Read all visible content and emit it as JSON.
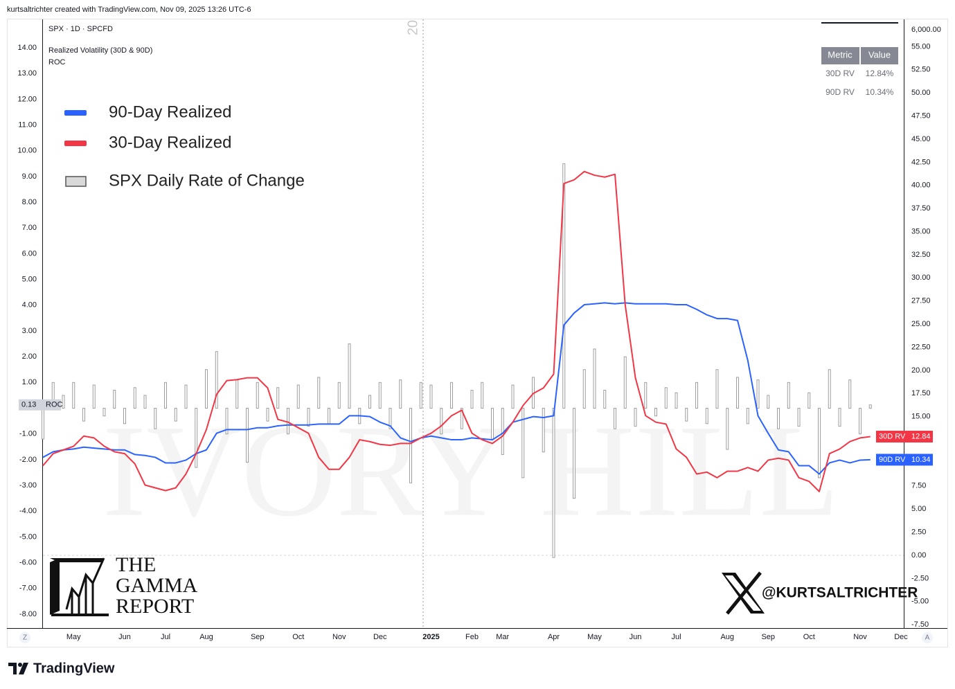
{
  "header": {
    "attribution": "kurtsaltrichter created with TradingView.com, Nov 09, 2025 13:26 UTC-6"
  },
  "chart_data": {
    "type": "line",
    "symbol": "SPX · 1D · SPCFD",
    "indicator": "Realized Volatility (30D & 90D)",
    "indicator2": "ROC",
    "year_marker": "20",
    "watermark": "IVORY HILL",
    "price_label": "6,000.00",
    "categories": [
      null,
      null,
      null,
      "May",
      null,
      null,
      null,
      null,
      "Jun",
      null,
      null,
      null,
      "Jul",
      null,
      null,
      null,
      "Aug",
      null,
      null,
      null,
      null,
      "Sep",
      null,
      null,
      null,
      "Oct",
      null,
      null,
      null,
      "Nov",
      null,
      null,
      null,
      "Dec",
      null,
      null,
      null,
      null,
      "2025",
      null,
      null,
      null,
      "Feb",
      null,
      null,
      "Mar",
      null,
      null,
      null,
      null,
      "Apr",
      null,
      null,
      null,
      "May",
      null,
      null,
      null,
      "Jun",
      null,
      null,
      null,
      "Jul",
      null,
      null,
      null,
      null,
      "Aug",
      null,
      null,
      null,
      "Sep",
      null,
      null,
      null,
      "Oct",
      null,
      null,
      null,
      null,
      "Nov",
      null,
      null,
      null,
      "Dec"
    ],
    "series": [
      {
        "name": "90-Day Realized",
        "tag": "90D RV",
        "color": "#2962ff",
        "axis": "y2",
        "values": [
          10.6,
          11.2,
          11.4,
          11.5,
          11.7,
          11.6,
          11.5,
          11.4,
          11.4,
          10.9,
          10.8,
          10.6,
          10.0,
          10.0,
          10.3,
          11.0,
          11.4,
          13.2,
          13.6,
          13.6,
          13.6,
          13.8,
          13.8,
          14.0,
          14.1,
          14.1,
          14.1,
          14.2,
          14.2,
          14.2,
          15.1,
          15.1,
          15.0,
          14.4,
          14.0,
          12.7,
          12.3,
          12.7,
          12.9,
          12.7,
          12.5,
          12.5,
          12.7,
          12.6,
          12.5,
          13.2,
          14.4,
          14.7,
          15.0,
          14.9,
          15.1,
          24.9,
          26.2,
          27.1,
          27.2,
          27.3,
          27.2,
          27.3,
          27.2,
          27.2,
          27.2,
          27.2,
          27.1,
          27.1,
          26.6,
          26.0,
          25.6,
          25.6,
          25.4,
          21.1,
          15.1,
          13.2,
          11.4,
          11.2,
          9.7,
          9.7,
          8.8,
          10.0,
          10.3,
          10.0,
          10.3,
          10.34,
          null,
          null,
          null
        ]
      },
      {
        "name": "30-Day Realized",
        "tag": "30D RV",
        "color": "#f23645",
        "axis": "y2",
        "values": [
          9.7,
          11.0,
          11.4,
          11.8,
          12.9,
          12.7,
          11.8,
          11.2,
          11.0,
          9.9,
          7.6,
          7.3,
          7.0,
          7.3,
          8.8,
          11.0,
          13.6,
          17.4,
          18.9,
          19.0,
          19.2,
          19.2,
          18.1,
          14.7,
          14.4,
          13.8,
          13.2,
          10.6,
          9.3,
          9.3,
          10.6,
          12.5,
          12.3,
          12.0,
          11.9,
          12.1,
          12.1,
          12.7,
          13.2,
          14.0,
          15.1,
          15.7,
          13.2,
          12.5,
          12.1,
          12.9,
          14.4,
          16.2,
          17.5,
          18.1,
          19.6,
          40.2,
          40.6,
          41.5,
          41.1,
          40.9,
          41.2,
          27.1,
          19.2,
          15.1,
          14.4,
          14.2,
          11.5,
          10.6,
          8.8,
          9.0,
          8.4,
          9.1,
          9.1,
          9.5,
          9.1,
          10.3,
          10.5,
          10.3,
          8.4,
          8.0,
          6.9,
          11.0,
          11.5,
          12.3,
          12.7,
          12.84,
          null,
          null,
          null
        ]
      },
      {
        "name": "SPX Daily Rate of Change",
        "tag": "ROC",
        "type": "bar",
        "color": "#9e9e9e",
        "values": [
          -1.2,
          1.0,
          0.5,
          1.0,
          -0.5,
          0.9,
          -0.3,
          0.7,
          -0.6,
          0.8,
          0.5,
          -0.8,
          1.0,
          -0.5,
          0.9,
          -2.3,
          1.5,
          2.2,
          -1.0,
          1.1,
          -2.1,
          1.0,
          -0.5,
          0.8,
          -1.0,
          0.9,
          -0.7,
          1.2,
          -0.6,
          1.0,
          2.5,
          -0.6,
          0.5,
          1.0,
          -0.8,
          1.1,
          -2.9,
          1.0,
          0.9,
          -1.0,
          1.0,
          -0.8,
          0.7,
          1.0,
          -1.2,
          -1.8,
          0.9,
          -2.7,
          1.2,
          -1.7,
          -5.8,
          9.5,
          -3.5,
          1.5,
          2.3,
          0.7,
          -0.8,
          2.0,
          -0.7,
          1.0,
          -0.3,
          0.8,
          0.6,
          -0.5,
          1.0,
          -0.6,
          1.5,
          -1.6,
          1.2,
          -0.6,
          1.1,
          0.5,
          -0.8,
          1.0,
          -0.7,
          0.6,
          -2.7,
          1.5,
          -0.7,
          1.1,
          -1.0,
          0.13,
          null,
          null,
          null
        ]
      }
    ],
    "ylim": [
      -8.54,
      15.05
    ],
    "yticks": [
      {
        "value": 14,
        "label": "14.00"
      },
      {
        "value": 13,
        "label": "13.00"
      },
      {
        "value": 12,
        "label": "12.00"
      },
      {
        "value": 11,
        "label": "11.00"
      },
      {
        "value": 10,
        "label": "10.00"
      },
      {
        "value": 9,
        "label": "9.00"
      },
      {
        "value": 8,
        "label": "8.00"
      },
      {
        "value": 7,
        "label": "7.00"
      },
      {
        "value": 6,
        "label": "6.00"
      },
      {
        "value": 5,
        "label": "5.00"
      },
      {
        "value": 4,
        "label": "4.00"
      },
      {
        "value": 3,
        "label": "3.00"
      },
      {
        "value": 2,
        "label": "2.00"
      },
      {
        "value": 1,
        "label": "1.00"
      },
      {
        "value": -1,
        "label": "-1.00"
      },
      {
        "value": -2,
        "label": "-2.00"
      },
      {
        "value": -3,
        "label": "-3.00"
      },
      {
        "value": -4,
        "label": "-4.00"
      },
      {
        "value": -5,
        "label": "-5.00"
      },
      {
        "value": -6,
        "label": "-6.00"
      },
      {
        "value": -7,
        "label": "-7.00"
      },
      {
        "value": -8,
        "label": "-8.00"
      }
    ],
    "y2lim": [
      -7.86,
      57.8
    ],
    "y2ticks": [
      {
        "value": 55,
        "label": "55.00"
      },
      {
        "value": 52.5,
        "label": "52.50"
      },
      {
        "value": 50,
        "label": "50.00"
      },
      {
        "value": 47.5,
        "label": "47.50"
      },
      {
        "value": 45,
        "label": "45.00"
      },
      {
        "value": 42.5,
        "label": "42.50"
      },
      {
        "value": 40,
        "label": "40.00"
      },
      {
        "value": 37.5,
        "label": "37.50"
      },
      {
        "value": 35,
        "label": "35.00"
      },
      {
        "value": 32.5,
        "label": "32.50"
      },
      {
        "value": 30,
        "label": "30.00"
      },
      {
        "value": 27.5,
        "label": "27.50"
      },
      {
        "value": 25,
        "label": "25.00"
      },
      {
        "value": 22.5,
        "label": "22.50"
      },
      {
        "value": 20,
        "label": "20.00"
      },
      {
        "value": 17.5,
        "label": "17.50"
      },
      {
        "value": 15,
        "label": "15.00"
      },
      {
        "value": 12.5,
        "label": "12.50"
      },
      {
        "value": 10,
        "label": "10.00"
      },
      {
        "value": 7.5,
        "label": "7.50"
      },
      {
        "value": 5,
        "label": "5.00"
      },
      {
        "value": 2.5,
        "label": "2.50"
      },
      {
        "value": 0,
        "label": "0.00"
      },
      {
        "value": -2.5,
        "label": "-2.50"
      },
      {
        "value": -5,
        "label": "-5.00"
      },
      {
        "value": -7.5,
        "label": "-7.50"
      }
    ],
    "legend_position": "upper left",
    "table": {
      "columns": [
        "Metric",
        "Value"
      ],
      "rows": [
        [
          "30D RV",
          "12.84%"
        ],
        [
          "90D RV",
          "10.34%"
        ]
      ]
    },
    "scale_buttons": [
      "Z",
      "A"
    ]
  },
  "branding": {
    "logo": [
      "THE",
      "GAMMA",
      "REPORT"
    ],
    "handle": "@KURTSALTRICHTER",
    "footer": "TradingView"
  }
}
